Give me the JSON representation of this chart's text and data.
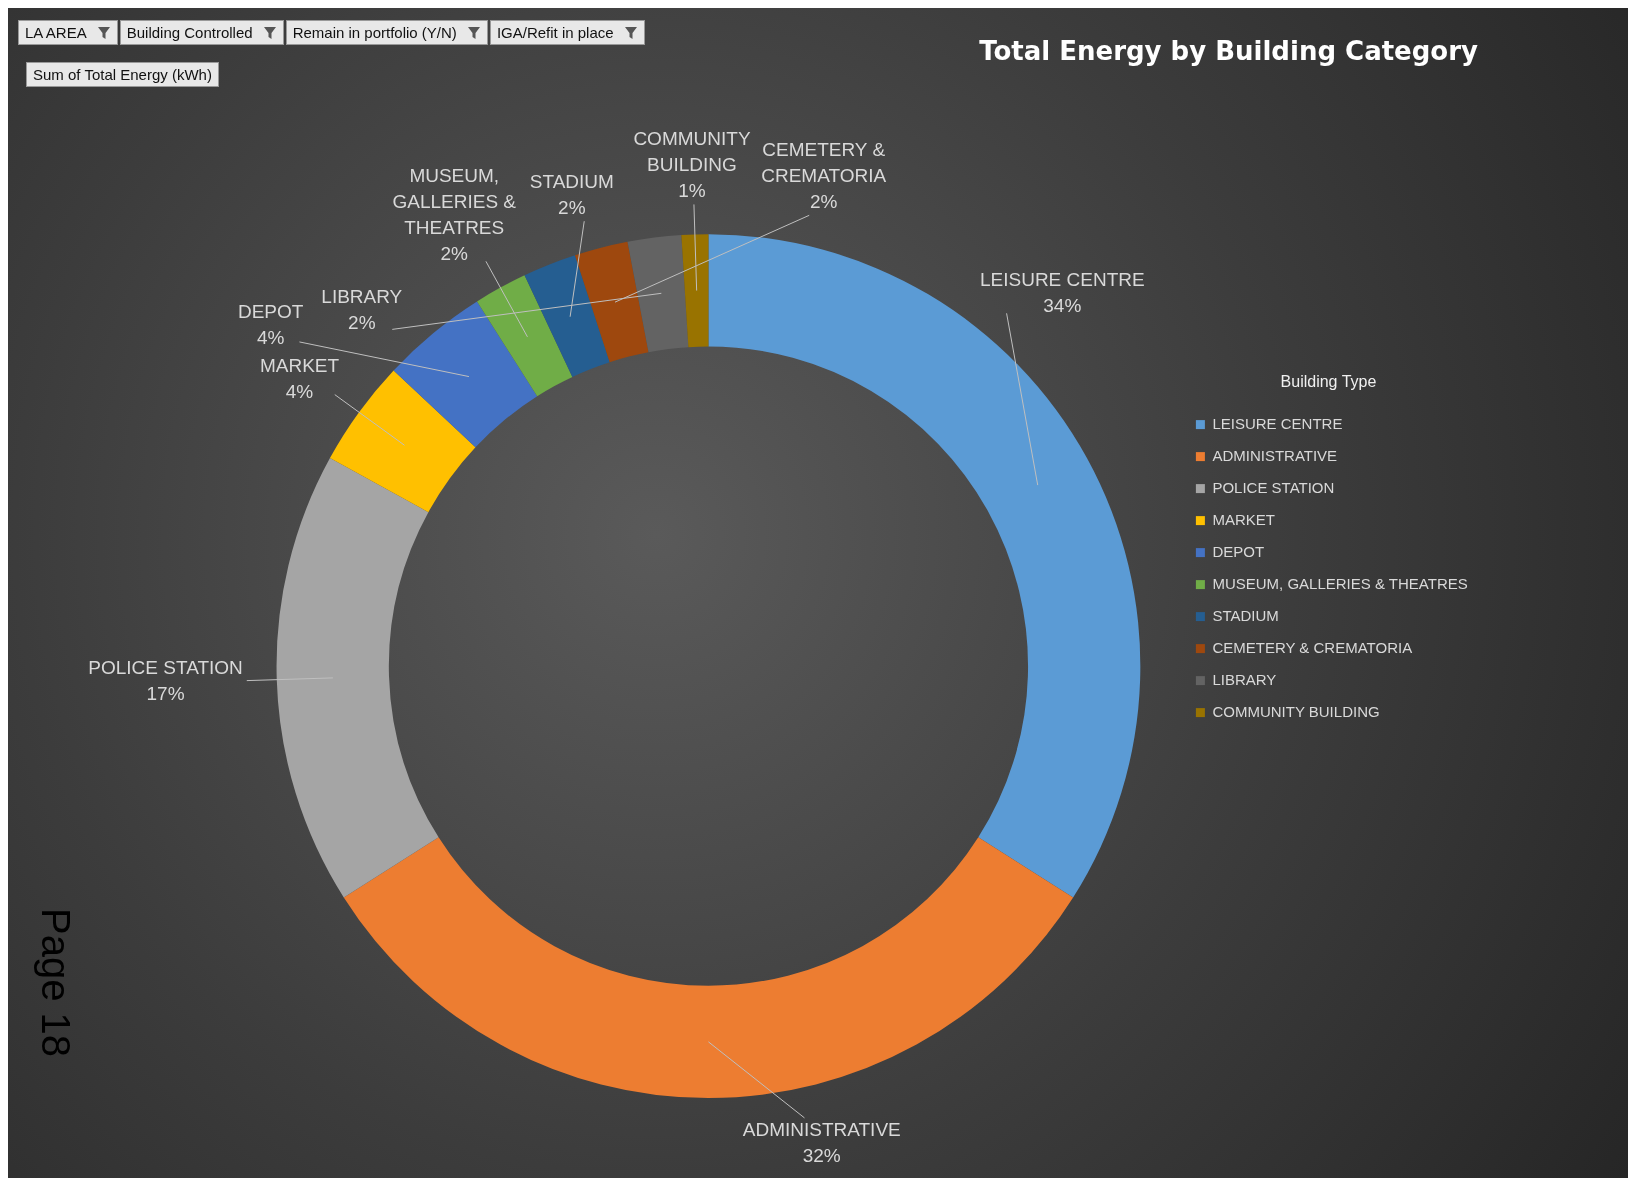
{
  "chart_data": {
    "type": "donut",
    "title": "Total Energy by Building Category",
    "legend_title": "Building Type",
    "legend": "right",
    "categories": [
      "LEISURE CENTRE",
      "ADMINISTRATIVE",
      "POLICE STATION",
      "MARKET",
      "DEPOT",
      "MUSEUM, GALLERIES & THEATRES",
      "STADIUM",
      "CEMETERY & CREMATORIA",
      "LIBRARY",
      "COMMUNITY BUILDING"
    ],
    "values": [
      34,
      32,
      17,
      4,
      4,
      2,
      2,
      2,
      2,
      1
    ],
    "value_labels": [
      "34%",
      "32%",
      "17%",
      "4%",
      "4%",
      "2%",
      "2%",
      "2%",
      "2%",
      "1%"
    ],
    "colors": [
      "#5b9bd5",
      "#ed7d31",
      "#a5a5a5",
      "#ffc000",
      "#4472c4",
      "#70ad47",
      "#255e91",
      "#9e480e",
      "#636363",
      "#997300"
    ],
    "annotations": [
      "LA AREA",
      "Building Controlled",
      "Remain in portfolio (Y/N)",
      "IGA/Refit in place",
      "Sum of Total Energy (kWh)",
      "Page 18"
    ]
  }
}
